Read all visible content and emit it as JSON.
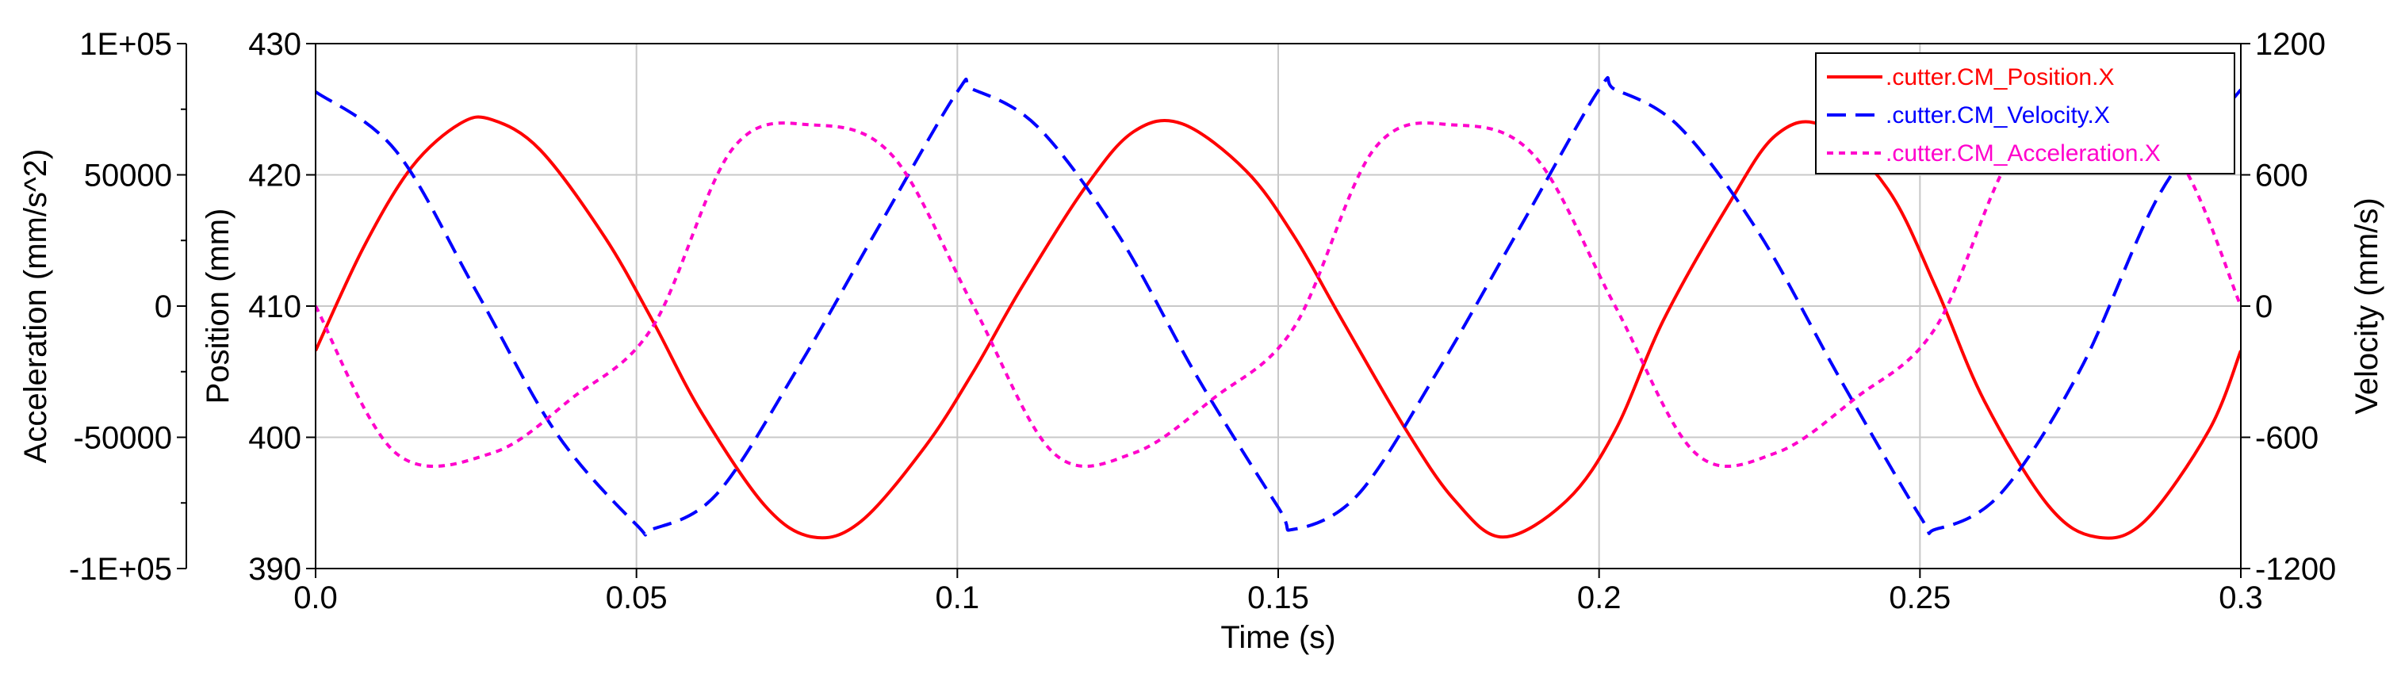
{
  "chart_data": {
    "type": "line",
    "x": {
      "label": "Time (s)",
      "range": [
        0,
        0.3
      ],
      "ticks": [
        0,
        0.05,
        0.1,
        0.15,
        0.2,
        0.25,
        0.3
      ],
      "tick_labels": [
        "0.0",
        "0.05",
        "0.1",
        "0.15",
        "0.2",
        "0.25",
        "0.3"
      ]
    },
    "axes": {
      "position": {
        "label": "Position (mm)",
        "range": [
          390,
          430
        ],
        "ticks": [
          390,
          400,
          410,
          420,
          430
        ],
        "tick_labels": [
          "390",
          "400",
          "410",
          "420",
          "430"
        ],
        "side": "left-inner"
      },
      "acceleration": {
        "label": "Acceleration (mm/s^2)",
        "range": [
          -100000,
          100000
        ],
        "ticks": [
          -100000,
          -50000,
          0,
          50000,
          100000
        ],
        "tick_labels": [
          "-1E+05",
          "-50000",
          "0",
          "50000",
          "1E+05"
        ],
        "side": "left-outer"
      },
      "velocity": {
        "label": "Velocity (mm/s)",
        "range": [
          -1200,
          1200
        ],
        "ticks": [
          -1200,
          -600,
          0,
          600,
          1200
        ],
        "tick_labels": [
          "-1200",
          "-600",
          "0",
          "600",
          "1200"
        ],
        "side": "right"
      }
    },
    "grid": true,
    "legend_position": "top-right",
    "series": [
      {
        "name": ".cutter.CM_Position.X",
        "axis": "position",
        "color": "#ff0000",
        "dash": "solid",
        "x": [
          0,
          0.0075,
          0.015,
          0.0225,
          0.0275,
          0.035,
          0.045,
          0.0525,
          0.06,
          0.07,
          0.0775,
          0.085,
          0.095,
          0.1025,
          0.11,
          0.12,
          0.1275,
          0.135,
          0.145,
          0.1525,
          0.16,
          0.17,
          0.1775,
          0.185,
          0.195,
          0.2025,
          0.21,
          0.22,
          0.2275,
          0.235,
          0.245,
          0.2525,
          0.26,
          0.27,
          0.2775,
          0.285,
          0.295,
          0.3
        ],
        "y": [
          406.6,
          414.5,
          420.6,
          423.9,
          424.2,
          421.9,
          415.3,
          408.9,
          402.0,
          394.8,
          392.4,
          393.6,
          399.3,
          405.0,
          411.4,
          419.1,
          423.3,
          423.9,
          420.3,
          415.3,
          408.9,
          400.5,
          395.2,
          392.4,
          395.2,
          400.5,
          408.9,
          417.6,
          423.0,
          423.7,
          418.9,
          411.4,
          402.8,
          394.8,
          392.4,
          393.6,
          400.5,
          406.6
        ]
      },
      {
        "name": ".cutter.CM_Velocity.X",
        "axis": "velocity",
        "color": "#0000ff",
        "dash": "dashed",
        "x": [
          0,
          0.0125,
          0.025,
          0.0375,
          0.05,
          0.0525,
          0.0625,
          0.075,
          0.0875,
          0.1,
          0.1025,
          0.1125,
          0.125,
          0.1375,
          0.15,
          0.1525,
          0.1625,
          0.175,
          0.1875,
          0.2,
          0.2025,
          0.2125,
          0.225,
          0.2375,
          0.25,
          0.2525,
          0.2625,
          0.275,
          0.2875,
          0.3
        ],
        "y": [
          980,
          710,
          70,
          -580,
          -1000,
          -1020,
          -860,
          -290,
          350,
          980,
          990,
          820,
          330,
          -330,
          -920,
          -1020,
          -860,
          -290,
          350,
          990,
          990,
          820,
          330,
          -330,
          -960,
          -1020,
          -860,
          -290,
          520,
          990
        ]
      },
      {
        "name": ".cutter.CM_Acceleration.X",
        "axis": "acceleration",
        "color": "#ff00cc",
        "dash": "dotted",
        "x": [
          0,
          0.0125,
          0.0275,
          0.04,
          0.0525,
          0.065,
          0.0775,
          0.09,
          0.1025,
          0.115,
          0.1275,
          0.14,
          0.1525,
          0.165,
          0.1775,
          0.19,
          0.2025,
          0.215,
          0.2275,
          0.24,
          0.2525,
          0.265,
          0.2775,
          0.29,
          0.3
        ],
        "y": [
          0,
          -56000,
          -56000,
          -35000,
          -8000,
          60000,
          69000,
          57000,
          0,
          -56000,
          -56000,
          -35000,
          -8000,
          60000,
          69000,
          57000,
          0,
          -56000,
          -56000,
          -35000,
          -8000,
          60000,
          69000,
          57000,
          0
        ]
      }
    ]
  }
}
